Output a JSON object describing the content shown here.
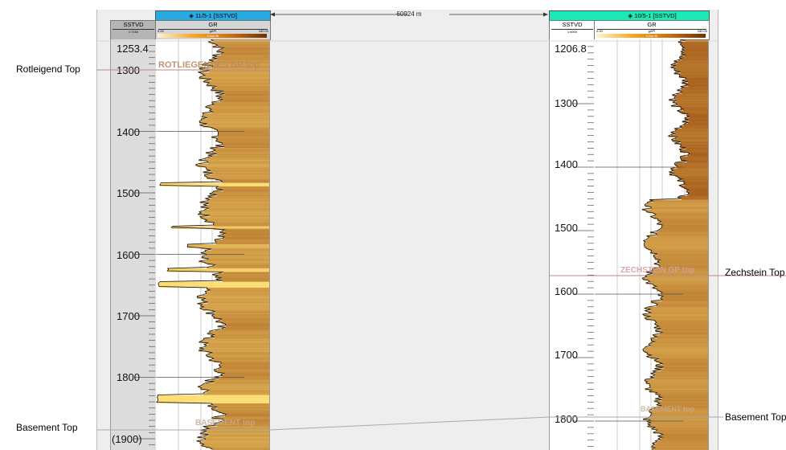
{
  "annotations": {
    "rotliegend": "Rotleigend Top",
    "zechstein": "Zechstein Top",
    "basement_left": "Basement Top",
    "basement_right": "Basement Top"
  },
  "distance_label": "60924 m",
  "colors": {
    "left_header": "#29abe2",
    "right_header": "#1de9b6",
    "panel_bg": "#eeeeee",
    "depth_track": "#dcdcdc",
    "connector": "#aaaaaa",
    "top_line": "#b98a8a"
  },
  "wells": {
    "left": {
      "title": "11/5-1 [SSTVD]",
      "depth_label": "SSTVD",
      "depth_scale": "1:7160",
      "log_label": "GR",
      "log_unit": "gAPI",
      "log_min": "0.00",
      "log_max": "180.00",
      "fill_label": "Color fill",
      "depth_ticks": [
        "1253.4",
        "1300",
        "1400",
        "1500",
        "1600",
        "1700",
        "1800",
        "(1900)"
      ],
      "markers": [
        "ROTLIEGENDES GP top",
        "BASEMENT top"
      ],
      "gr_min": 40,
      "gr_max": 135,
      "spikes": [
        {
          "depth": 1485,
          "gr": 8
        },
        {
          "depth": 1555,
          "gr": 25
        },
        {
          "depth": 1585,
          "gr": 50
        },
        {
          "depth": 1625,
          "gr": 20
        },
        {
          "depth": 1648,
          "gr": 5
        },
        {
          "depth": 1835,
          "gr": 3
        }
      ]
    },
    "right": {
      "title": "10/5-1 [SSTVD]",
      "depth_label": "SSTVD",
      "depth_scale": "1:6900",
      "log_label": "GR",
      "log_unit": "gAPI",
      "log_min": "0.00",
      "log_max": "180.00",
      "fill_label": "Color fill",
      "depth_ticks": [
        "1206.8",
        "1300",
        "1400",
        "1500",
        "1600",
        "1700",
        "1800"
      ],
      "markers": [
        "ZECHSTEIN GP top",
        "BASEMENT top"
      ],
      "gr_min": 100,
      "gr_max": 170,
      "shift_depth": 1450,
      "shifted_gr_min": 55,
      "shifted_gr_max": 130
    }
  }
}
